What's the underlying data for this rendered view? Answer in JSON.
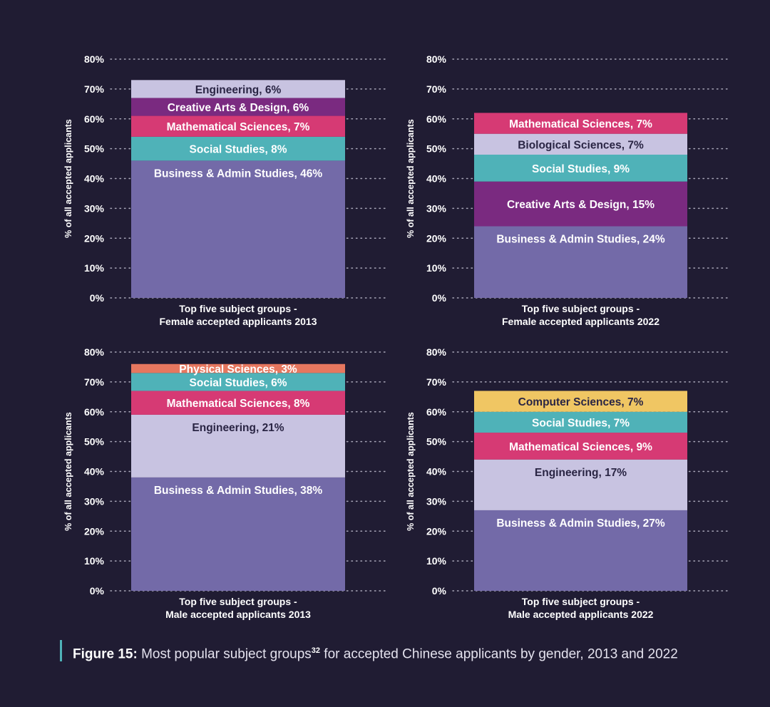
{
  "chart_data": [
    {
      "type": "bar",
      "stacked": true,
      "title": "Top five subject groups - Female accepted applicants 2013",
      "title_lines": [
        "Top five subject groups -",
        "Female accepted applicants 2013"
      ],
      "ylabel": "% of all accepted applicants",
      "ylim": [
        0,
        80
      ],
      "yticks": [
        "0%",
        "10%",
        "20%",
        "30%",
        "40%",
        "50%",
        "60%",
        "70%",
        "80%"
      ],
      "grid": "dotted",
      "segments": [
        {
          "name": "Business & Admin Studies",
          "value": 46,
          "label": "Business & Admin Studies, 46%",
          "color": "#736aa8",
          "text_color": "#ffffff",
          "label_position": "top"
        },
        {
          "name": "Social Studies",
          "value": 8,
          "label": "Social Studies, 8%",
          "color": "#4fb2b8",
          "text_color": "#ffffff"
        },
        {
          "name": "Mathematical Sciences",
          "value": 7,
          "label": "Mathematical Sciences, 7%",
          "color": "#d63a74",
          "text_color": "#ffffff"
        },
        {
          "name": "Creative Arts & Design",
          "value": 6,
          "label": "Creative Arts & Design, 6%",
          "color": "#7a2a80",
          "text_color": "#ffffff"
        },
        {
          "name": "Engineering",
          "value": 6,
          "label": "Engineering, 6%",
          "color": "#c8c3e1",
          "text_color": "#2a2544"
        }
      ]
    },
    {
      "type": "bar",
      "stacked": true,
      "title": "Top five subject groups - Female accepted applicants 2022",
      "title_lines": [
        "Top five subject groups -",
        "Female accepted applicants 2022"
      ],
      "ylabel": "% of all accepted applicants",
      "ylim": [
        0,
        80
      ],
      "yticks": [
        "0%",
        "10%",
        "20%",
        "30%",
        "40%",
        "50%",
        "60%",
        "70%",
        "80%"
      ],
      "grid": "dotted",
      "segments": [
        {
          "name": "Business & Admin Studies",
          "value": 24,
          "label": "Business & Admin Studies, 24%",
          "color": "#736aa8",
          "text_color": "#ffffff",
          "label_position": "top"
        },
        {
          "name": "Creative Arts & Design",
          "value": 15,
          "label": "Creative Arts & Design, 15%",
          "color": "#7a2a80",
          "text_color": "#ffffff"
        },
        {
          "name": "Social Studies",
          "value": 9,
          "label": "Social Studies, 9%",
          "color": "#4fb2b8",
          "text_color": "#ffffff"
        },
        {
          "name": "Biological Sciences",
          "value": 7,
          "label": "Biological Sciences, 7%",
          "color": "#c8c3e1",
          "text_color": "#2a2544"
        },
        {
          "name": "Mathematical Sciences",
          "value": 7,
          "label": "Mathematical Sciences, 7%",
          "color": "#d63a74",
          "text_color": "#ffffff"
        }
      ]
    },
    {
      "type": "bar",
      "stacked": true,
      "title": "Top five subject groups - Male accepted applicants 2013",
      "title_lines": [
        "Top five subject groups -",
        "Male accepted applicants 2013"
      ],
      "ylabel": "% of all accepted applicants",
      "ylim": [
        0,
        80
      ],
      "yticks": [
        "0%",
        "10%",
        "20%",
        "30%",
        "40%",
        "50%",
        "60%",
        "70%",
        "80%"
      ],
      "grid": "dotted",
      "segments": [
        {
          "name": "Business & Admin Studies",
          "value": 38,
          "label": "Business & Admin Studies, 38%",
          "color": "#736aa8",
          "text_color": "#ffffff",
          "label_position": "top"
        },
        {
          "name": "Engineering",
          "value": 21,
          "label": "Engineering, 21%",
          "color": "#c8c3e1",
          "text_color": "#2a2544",
          "label_position": "top"
        },
        {
          "name": "Mathematical Sciences",
          "value": 8,
          "label": "Mathematical Sciences, 8%",
          "color": "#d63a74",
          "text_color": "#ffffff"
        },
        {
          "name": "Social Studies",
          "value": 6,
          "label": "Social Studies, 6%",
          "color": "#4fb2b8",
          "text_color": "#ffffff"
        },
        {
          "name": "Physical Sciences",
          "value": 3,
          "label": "Physical Sciences, 3%",
          "color": "#e6775f",
          "text_color": "#ffffff"
        }
      ]
    },
    {
      "type": "bar",
      "stacked": true,
      "title": "Top five subject groups - Male accepted applicants 2022",
      "title_lines": [
        "Top five subject groups -",
        "Male accepted applicants 2022"
      ],
      "ylabel": "% of all accepted applicants",
      "ylim": [
        0,
        80
      ],
      "yticks": [
        "0%",
        "10%",
        "20%",
        "30%",
        "40%",
        "50%",
        "60%",
        "70%",
        "80%"
      ],
      "grid": "dotted",
      "segments": [
        {
          "name": "Business & Admin Studies",
          "value": 27,
          "label": "Business & Admin Studies, 27%",
          "color": "#736aa8",
          "text_color": "#ffffff",
          "label_position": "top"
        },
        {
          "name": "Engineering",
          "value": 17,
          "label": "Engineering, 17%",
          "color": "#c8c3e1",
          "text_color": "#2a2544",
          "label_position": "top"
        },
        {
          "name": "Mathematical Sciences",
          "value": 9,
          "label": "Mathematical Sciences, 9%",
          "color": "#d63a74",
          "text_color": "#ffffff"
        },
        {
          "name": "Social Studies",
          "value": 7,
          "label": "Social Studies, 7%",
          "color": "#4fb2b8",
          "text_color": "#ffffff"
        },
        {
          "name": "Computer Sciences",
          "value": 7,
          "label": "Computer Sciences, 7%",
          "color": "#f0c663",
          "text_color": "#2a2544"
        }
      ]
    }
  ],
  "caption": {
    "label": "Figure 15:",
    "text_before_sup": " Most popular subject groups",
    "sup": "32",
    "text_after_sup": " for accepted Chinese applicants by gender, 2013 and 2022"
  },
  "colors": {
    "background": "#201c33",
    "accent": "#4fb2b8",
    "grid": "#a8a6b8"
  }
}
